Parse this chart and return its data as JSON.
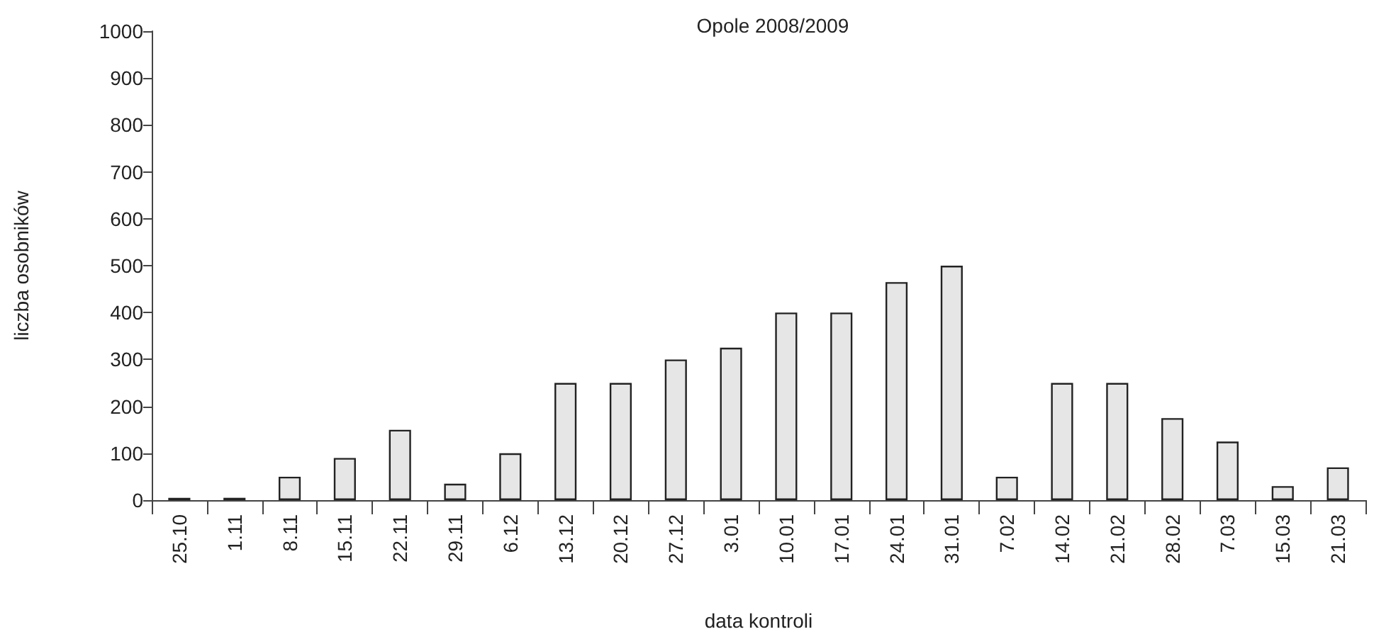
{
  "chart_data": {
    "type": "bar",
    "title": "Opole 2008/2009",
    "xlabel": "data kontroli",
    "ylabel": "liczba osobników",
    "categories": [
      "25.10",
      "1.11",
      "8.11",
      "15.11",
      "22.11",
      "29.11",
      "6.12",
      "13.12",
      "20.12",
      "27.12",
      "3.01",
      "10.01",
      "17.01",
      "24.01",
      "31.01",
      "7.02",
      "14.02",
      "21.02",
      "28.02",
      "7.03",
      "15.03",
      "21.03"
    ],
    "values": [
      5,
      5,
      50,
      90,
      150,
      35,
      100,
      250,
      250,
      300,
      325,
      400,
      400,
      465,
      500,
      50,
      250,
      250,
      175,
      125,
      30,
      70
    ],
    "color": "#e6e6e6",
    "ylim": [
      0,
      1000
    ],
    "yticks": [
      0,
      100,
      200,
      300,
      400,
      500,
      600,
      700,
      800,
      900,
      1000
    ],
    "grid": false
  }
}
